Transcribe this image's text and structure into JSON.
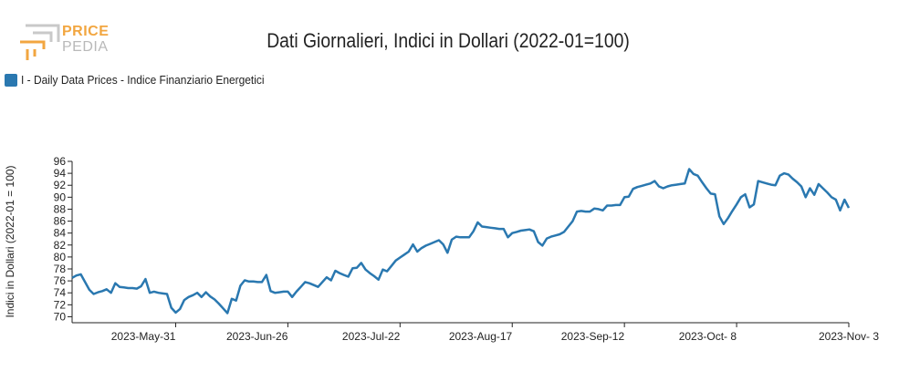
{
  "logo": {
    "word1": "PRICE",
    "word2": "PEDIA"
  },
  "colors": {
    "series": "#2a78b0",
    "logo_orange": "#f2a640",
    "logo_gray": "#b9b9b9"
  },
  "chart_data": {
    "type": "line",
    "title": "Dati Giornalieri, Indici in Dollari (2022-01=100)",
    "ylabel": "Indici in Dollari (2022-01 = 100)",
    "xlabel": "",
    "ylim": [
      69,
      96
    ],
    "yticks": [
      70,
      72,
      74,
      76,
      78,
      80,
      82,
      84,
      86,
      88,
      90,
      92,
      94,
      96
    ],
    "x_tick_labels": [
      "2023-May-31",
      "2023-Jun-26",
      "2023-Jul-22",
      "2023-Aug-17",
      "2023-Sep-12",
      "2023-Oct- 8",
      "2023-Nov- 3"
    ],
    "x_tick_days": [
      24,
      50,
      76,
      102,
      128,
      154,
      180
    ],
    "xlim_days": [
      0,
      180
    ],
    "legend": "top-left",
    "series": [
      {
        "name": "I - Daily Data Prices - Indice Finanziario Energetici",
        "x_days": [
          0,
          1,
          2,
          3,
          4,
          5,
          6,
          7,
          8,
          9,
          10,
          11,
          12,
          13,
          14,
          15,
          16,
          17,
          18,
          19,
          20,
          21,
          22,
          23,
          24,
          25,
          26,
          27,
          28,
          29,
          30,
          31,
          32,
          33,
          34,
          35,
          36,
          37,
          38,
          39,
          40,
          41,
          42,
          43,
          44,
          45,
          46,
          47,
          48,
          49,
          50,
          51,
          52,
          53,
          54,
          55,
          56,
          57,
          58,
          59,
          60,
          61,
          62,
          63,
          64,
          65,
          66,
          67,
          68,
          69,
          70,
          71,
          72,
          73,
          74,
          75,
          76,
          77,
          78,
          79,
          80,
          81,
          82,
          83,
          84,
          85,
          86,
          87,
          88,
          89,
          90,
          91,
          92,
          93,
          94,
          95,
          96,
          97,
          98,
          99,
          100,
          101,
          102,
          103,
          104,
          105,
          106,
          107,
          108,
          109,
          110,
          111,
          112,
          113,
          114,
          115,
          116,
          117,
          118,
          119,
          120,
          121,
          122,
          123,
          124,
          125,
          126,
          127,
          128,
          129,
          130,
          131,
          132,
          133,
          134,
          135,
          136,
          137,
          138,
          139,
          140,
          141,
          142,
          143,
          144,
          145,
          146,
          147,
          148,
          149,
          150,
          151,
          152,
          153,
          154,
          155,
          156,
          157,
          158,
          159,
          160,
          161,
          162,
          163,
          164,
          165,
          166,
          167,
          168,
          169,
          170,
          171,
          172,
          173,
          174,
          175,
          176,
          177,
          178,
          179,
          180
        ],
        "values": [
          76.5,
          76.9,
          77.1,
          75.8,
          74.5,
          73.8,
          74.1,
          74.3,
          74.6,
          74.0,
          75.6,
          75.0,
          74.9,
          74.8,
          74.8,
          74.7,
          75.1,
          76.3,
          74.0,
          74.2,
          74.0,
          73.9,
          73.8,
          71.5,
          70.7,
          71.3,
          72.8,
          73.3,
          73.6,
          74.0,
          73.3,
          74.1,
          73.4,
          72.9,
          72.2,
          71.4,
          70.6,
          73.0,
          72.7,
          75.2,
          76.1,
          75.9,
          75.9,
          75.8,
          75.8,
          77.0,
          74.3,
          74.0,
          74.1,
          74.2,
          74.2,
          73.3,
          74.2,
          75.0,
          75.8,
          75.6,
          75.3,
          75.0,
          75.8,
          76.6,
          76.1,
          77.7,
          77.3,
          77.0,
          76.7,
          78.1,
          78.2,
          79.0,
          77.9,
          77.3,
          76.8,
          76.2,
          77.9,
          77.6,
          78.5,
          79.4,
          79.9,
          80.4,
          80.9,
          82.1,
          80.9,
          81.5,
          81.9,
          82.2,
          82.5,
          82.8,
          82.1,
          80.7,
          82.9,
          83.4,
          83.3,
          83.3,
          83.3,
          84.3,
          85.8,
          85.1,
          85.0,
          84.9,
          84.8,
          84.7,
          84.7,
          83.3,
          84.0,
          84.2,
          84.4,
          84.5,
          84.6,
          84.3,
          82.5,
          81.9,
          83.1,
          83.4,
          83.6,
          83.8,
          84.2,
          85.1,
          86.0,
          87.6,
          87.7,
          87.6,
          87.6,
          88.1,
          88.0,
          87.8,
          88.6,
          88.6,
          88.7,
          88.7,
          90.0,
          90.1,
          91.4,
          91.7,
          91.9,
          92.1,
          92.3,
          92.7,
          91.8,
          91.5,
          91.8,
          92.0,
          92.1,
          92.2,
          92.3,
          94.7,
          93.9,
          93.6,
          92.5,
          91.5,
          90.6,
          90.5,
          86.8,
          85.5,
          86.5,
          87.7,
          88.8,
          90.0,
          90.5,
          88.3,
          88.8,
          92.7,
          92.5,
          92.3,
          92.1,
          92.0,
          93.6,
          94.0,
          93.8,
          93.1,
          92.5,
          91.8,
          90.0,
          91.5,
          90.4,
          92.2,
          91.5,
          90.8,
          90.0,
          89.6,
          87.8,
          89.6,
          88.2
        ]
      }
    ]
  }
}
